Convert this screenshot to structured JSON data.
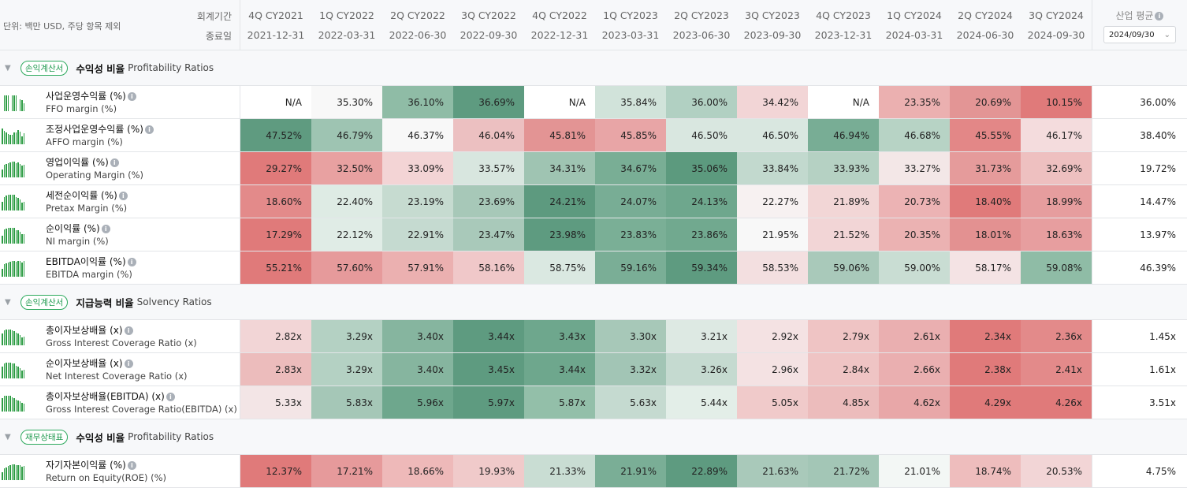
{
  "header": {
    "unit": "단위: 백만 USD, 주당 항목 제외",
    "period_label": "회계기간",
    "date_label": "종료일",
    "periods": [
      {
        "q": "4Q CY2021",
        "d": "2021-12-31"
      },
      {
        "q": "1Q CY2022",
        "d": "2022-03-31"
      },
      {
        "q": "2Q CY2022",
        "d": "2022-06-30"
      },
      {
        "q": "3Q CY2022",
        "d": "2022-09-30"
      },
      {
        "q": "4Q CY2022",
        "d": "2022-12-31"
      },
      {
        "q": "1Q CY2023",
        "d": "2023-03-31"
      },
      {
        "q": "2Q CY2023",
        "d": "2023-06-30"
      },
      {
        "q": "3Q CY2023",
        "d": "2023-09-30"
      },
      {
        "q": "4Q CY2023",
        "d": "2023-12-31"
      },
      {
        "q": "1Q CY2024",
        "d": "2024-03-31"
      },
      {
        "q": "2Q CY2024",
        "d": "2024-06-30"
      },
      {
        "q": "3Q CY2024",
        "d": "2024-09-30"
      }
    ],
    "industry_avg_label": "산업 평균",
    "info_glyph": "i",
    "industry_select_value": "2024/09/30",
    "chevron_glyph": "⌄"
  },
  "colors": {
    "green_strong": "#5a9a7c",
    "red_strong": "#de7a7a",
    "badge_green": "#2eaa5e",
    "spark_green": "#2c9c43"
  },
  "sections": [
    {
      "collapse": "▼",
      "badge": "손익계산서",
      "title": "수익성 비율",
      "subtitle": "Profitability Ratios",
      "rows": [
        {
          "ko": "사업운영수익률 (%)",
          "en": "FFO margin (%)",
          "values": [
            "N/A",
            "35.30%",
            "36.10%",
            "36.69%",
            "N/A",
            "35.84%",
            "36.00%",
            "34.42%",
            "N/A",
            "23.35%",
            "20.69%",
            "10.15%"
          ],
          "colors": [
            "#ffffff",
            "#f8f8f8",
            "#8fbca6",
            "#5e9b80",
            "#ffffff",
            "#d1e3da",
            "#b1d0c2",
            "#f2d5d6",
            "#ffffff",
            "#ebb0b0",
            "#e39595",
            "#e07a7a"
          ],
          "industry": "36.00%"
        },
        {
          "ko": "조정사업운영수익률 (%)",
          "en": "AFFO margin (%)",
          "values": [
            "47.52%",
            "46.79%",
            "46.37%",
            "46.04%",
            "45.81%",
            "45.85%",
            "46.50%",
            "46.50%",
            "46.94%",
            "46.68%",
            "45.55%",
            "46.17%"
          ],
          "colors": [
            "#5f9b80",
            "#9ec4b2",
            "#f8f8f8",
            "#ecc0c1",
            "#e39494",
            "#e8a5a6",
            "#d9e7e0",
            "#d9e7e0",
            "#78ad95",
            "#b7d3c5",
            "#e38787",
            "#f4dcdd"
          ],
          "industry": "38.40%"
        },
        {
          "ko": "영업이익률 (%)",
          "en": "Operating Margin (%)",
          "values": [
            "29.27%",
            "32.50%",
            "33.09%",
            "33.57%",
            "34.31%",
            "34.67%",
            "35.06%",
            "33.84%",
            "33.93%",
            "33.27%",
            "31.73%",
            "32.69%"
          ],
          "colors": [
            "#e07a7a",
            "#e8a1a1",
            "#f3d4d5",
            "#d8e6df",
            "#9fc4b2",
            "#79ae95",
            "#5c9a7e",
            "#c2d9ce",
            "#b5d1c3",
            "#f3e7e7",
            "#e59b9b",
            "#eec0c0"
          ],
          "industry": "19.72%"
        },
        {
          "ko": "세전순이익률 (%)",
          "en": "Pretax Margin (%)",
          "values": [
            "18.60%",
            "22.40%",
            "23.19%",
            "23.69%",
            "24.21%",
            "24.07%",
            "24.13%",
            "22.27%",
            "21.89%",
            "20.73%",
            "18.40%",
            "18.99%"
          ],
          "colors": [
            "#e38a8a",
            "#deebe4",
            "#c6dbd0",
            "#a7c8b8",
            "#5d9a7f",
            "#78ad95",
            "#6ea78d",
            "#f7f1f1",
            "#f2d6d6",
            "#ecb3b4",
            "#e07a7a",
            "#e69d9e"
          ],
          "industry": "14.47%"
        },
        {
          "ko": "순이익률 (%)",
          "en": "NI margin (%)",
          "values": [
            "17.29%",
            "22.12%",
            "22.91%",
            "23.47%",
            "23.98%",
            "23.83%",
            "23.86%",
            "21.95%",
            "21.52%",
            "20.35%",
            "18.01%",
            "18.63%"
          ],
          "colors": [
            "#e07a7a",
            "#e0ece6",
            "#c5dad0",
            "#a9c9ba",
            "#5e9b80",
            "#7aaf96",
            "#71a98f",
            "#f8f8f8",
            "#f2d5d6",
            "#ebb2b2",
            "#e39191",
            "#e79e9f"
          ],
          "industry": "13.97%"
        },
        {
          "ko": "EBITDA이익률 (%)",
          "en": "EBITDA margin (%)",
          "values": [
            "55.21%",
            "57.60%",
            "57.91%",
            "58.16%",
            "58.75%",
            "59.16%",
            "59.34%",
            "58.53%",
            "59.06%",
            "59.00%",
            "58.17%",
            "59.08%"
          ],
          "colors": [
            "#e07a7a",
            "#e69a9b",
            "#ebb0b0",
            "#f0c8c9",
            "#dae8e1",
            "#7aae96",
            "#5e9b80",
            "#f3dfe0",
            "#a9c9ba",
            "#c9ddd3",
            "#f4e3e4",
            "#8fbca6"
          ],
          "industry": "46.39%"
        }
      ]
    },
    {
      "collapse": "▼",
      "badge": "손익계산서",
      "title": "지급능력 비율",
      "subtitle": "Solvency Ratios",
      "rows": [
        {
          "ko": "총이자보상배율 (x)",
          "en": "Gross Interest Coverage Ratio (x)",
          "values": [
            "2.82x",
            "3.29x",
            "3.40x",
            "3.44x",
            "3.43x",
            "3.30x",
            "3.21x",
            "2.92x",
            "2.79x",
            "2.61x",
            "2.34x",
            "2.36x"
          ],
          "colors": [
            "#f2d5d6",
            "#b4d1c3",
            "#86b59f",
            "#5e9b80",
            "#6ea78d",
            "#a7c8b8",
            "#dde9e3",
            "#f4e2e3",
            "#efc4c4",
            "#eaafb0",
            "#e07a7a",
            "#e38a8a"
          ],
          "industry": "1.45x"
        },
        {
          "ko": "순이자보상배율 (x)",
          "en": "Net Interest Coverage Ratio (x)",
          "values": [
            "2.83x",
            "3.29x",
            "3.40x",
            "3.45x",
            "3.44x",
            "3.32x",
            "3.26x",
            "2.96x",
            "2.84x",
            "2.66x",
            "2.38x",
            "2.41x"
          ],
          "colors": [
            "#ecbcbc",
            "#b4d1c3",
            "#86b59f",
            "#5e9b80",
            "#6ea78d",
            "#a2c5b5",
            "#c5dad0",
            "#f4e2e3",
            "#efc4c4",
            "#eaafb0",
            "#e07a7a",
            "#e38a8a"
          ],
          "industry": "1.61x"
        },
        {
          "ko": "총이자보상배율(EBITDA) (x)",
          "en": "Gross Interest Coverage Ratio(EBITDA) (x)",
          "values": [
            "5.33x",
            "5.83x",
            "5.96x",
            "5.97x",
            "5.87x",
            "5.63x",
            "5.44x",
            "5.05x",
            "4.85x",
            "4.62x",
            "4.29x",
            "4.26x"
          ],
          "colors": [
            "#f3e5e6",
            "#a5c7b7",
            "#6ea78d",
            "#5e9b80",
            "#93bfa9",
            "#c5dad0",
            "#e3eee8",
            "#f0caca",
            "#ecbcbc",
            "#e8a7a8",
            "#e07a7a",
            "#e07a7a"
          ],
          "industry": "3.51x"
        }
      ]
    },
    {
      "collapse": "▼",
      "badge": "재무상태표",
      "title": "수익성 비율",
      "subtitle": "Profitability Ratios",
      "rows": [
        {
          "ko": "자기자본이익률 (%)",
          "en": "Return on Equity(ROE) (%)",
          "values": [
            "12.37%",
            "17.21%",
            "18.66%",
            "19.93%",
            "21.33%",
            "21.91%",
            "22.89%",
            "21.63%",
            "21.72%",
            "21.01%",
            "18.74%",
            "20.53%"
          ],
          "colors": [
            "#e07a7a",
            "#e69a9b",
            "#eeb9b9",
            "#f0caca",
            "#c9ddd3",
            "#7aae96",
            "#5e9b80",
            "#a9c9ba",
            "#a3c6b6",
            "#f3f7f5",
            "#eebdbd",
            "#f2d5d6"
          ],
          "industry": "4.75%"
        }
      ]
    }
  ]
}
